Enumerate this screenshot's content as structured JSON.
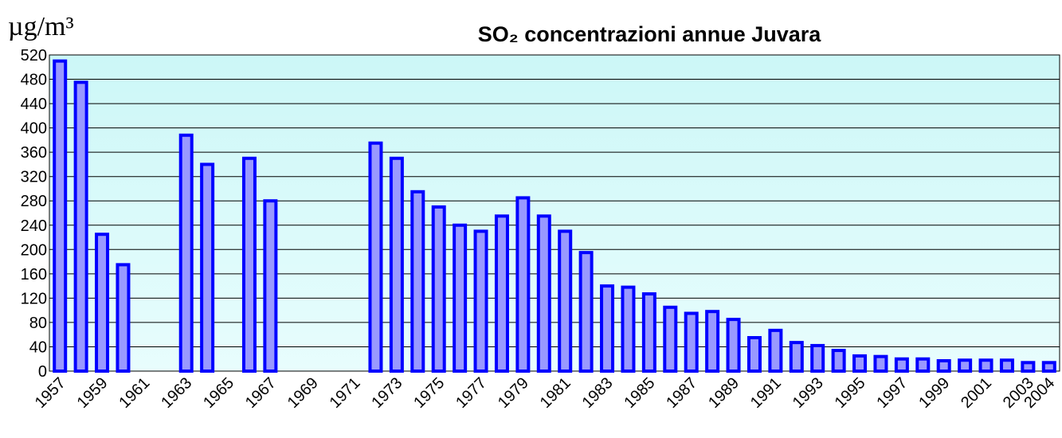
{
  "chart_data": {
    "type": "bar",
    "title": "SO₂ concentrazioni annue Juvara",
    "y_label": "µg/m³",
    "categories": [
      "1957",
      null,
      "1959",
      null,
      "1961",
      null,
      "1963",
      null,
      "1965",
      null,
      "1967",
      null,
      "1969",
      null,
      "1971",
      null,
      "1973",
      null,
      "1975",
      null,
      "1977",
      null,
      "1979",
      null,
      "1981",
      null,
      "1983",
      null,
      "1985",
      null,
      "1987",
      null,
      "1989",
      null,
      "1991",
      null,
      "1993",
      null,
      "1995",
      null,
      "1997",
      null,
      "1999",
      null,
      "2001",
      null,
      "2003",
      "2004"
    ],
    "values": [
      510,
      475,
      225,
      175,
      null,
      null,
      388,
      340,
      null,
      350,
      280,
      null,
      null,
      null,
      null,
      375,
      350,
      295,
      270,
      240,
      230,
      255,
      285,
      255,
      230,
      195,
      140,
      138,
      127,
      105,
      95,
      98,
      85,
      55,
      67,
      47,
      42,
      34,
      25,
      24,
      20,
      20,
      17,
      18,
      18,
      18,
      14,
      14
    ],
    "color": "#0000ff",
    "fill": "#9999ff",
    "ylim": [
      0,
      520
    ],
    "yticks": [
      0,
      40,
      80,
      120,
      160,
      200,
      240,
      280,
      320,
      360,
      400,
      440,
      480,
      520
    ],
    "grid": true
  }
}
